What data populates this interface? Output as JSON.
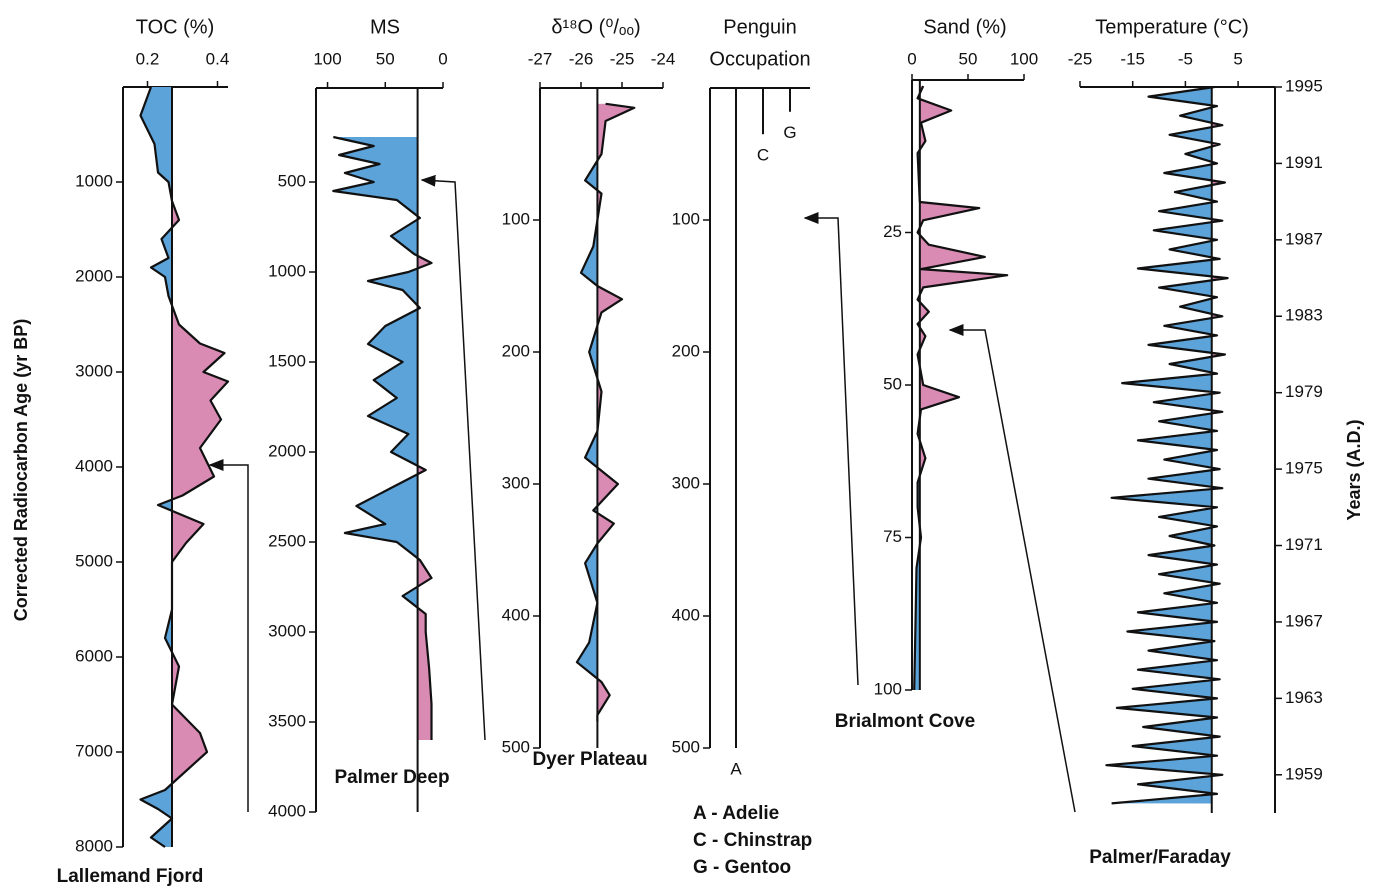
{
  "chart_data": [
    {
      "type": "area",
      "title": "TOC (%)",
      "label": "Lallemand Fjord",
      "y": [
        0,
        300,
        600,
        900,
        1000,
        1200,
        1400,
        1600,
        1800,
        1900,
        2000,
        2200,
        2500,
        2700,
        2800,
        3000,
        3100,
        3300,
        3500,
        3800,
        4100,
        4300,
        4400,
        4600,
        4800,
        5000,
        5500,
        5800,
        6100,
        6500,
        6800,
        7000,
        7200,
        7400,
        7500,
        7600,
        7700,
        7900,
        8000
      ],
      "values": [
        0.21,
        0.18,
        0.22,
        0.23,
        0.26,
        0.27,
        0.29,
        0.24,
        0.26,
        0.21,
        0.25,
        0.26,
        0.29,
        0.35,
        0.42,
        0.36,
        0.43,
        0.38,
        0.41,
        0.35,
        0.39,
        0.3,
        0.23,
        0.36,
        0.31,
        0.27,
        0.27,
        0.25,
        0.29,
        0.27,
        0.35,
        0.37,
        0.31,
        0.25,
        0.18,
        0.23,
        0.27,
        0.21,
        0.25
      ],
      "xlim": [
        0.13,
        0.43
      ],
      "xticks": [
        0.2,
        0.4
      ],
      "ylim": [
        0,
        8000
      ],
      "yticks": [
        1000,
        2000,
        3000,
        4000,
        5000,
        6000,
        7000,
        8000
      ],
      "baseline": 0.27,
      "fill_left": "#5ba3d9",
      "fill_right": "#d98bb4",
      "y_axis_title": "Corrected Radiocarbon Age (yr BP)"
    },
    {
      "type": "area",
      "title": "MS",
      "label": "Palmer Deep",
      "y": [
        250,
        300,
        350,
        400,
        450,
        500,
        550,
        600,
        700,
        800,
        900,
        950,
        1000,
        1050,
        1100,
        1200,
        1300,
        1400,
        1500,
        1600,
        1700,
        1800,
        1900,
        2000,
        2100,
        2200,
        2300,
        2400,
        2450,
        2500,
        2600,
        2700,
        2800,
        2900,
        3000,
        3200,
        3400,
        3600
      ],
      "values": [
        95,
        60,
        90,
        55,
        85,
        60,
        95,
        40,
        20,
        45,
        25,
        10,
        30,
        65,
        35,
        20,
        50,
        65,
        35,
        60,
        40,
        65,
        30,
        45,
        15,
        45,
        75,
        50,
        85,
        40,
        20,
        10,
        35,
        15,
        15,
        12,
        10,
        10
      ],
      "xlim": [
        110,
        0
      ],
      "xticks": [
        100,
        50,
        0
      ],
      "ylim": [
        0,
        4000
      ],
      "yticks": [
        500,
        1000,
        1500,
        2000,
        2500,
        3000,
        3500,
        4000
      ],
      "baseline": 22,
      "fill_left": "#5ba3d9",
      "fill_right": "#d98bb4"
    },
    {
      "type": "area",
      "title": "δ¹⁸O (⁰/ₒₒ)",
      "label": "Dyer Plateau",
      "y": [
        12,
        15,
        25,
        50,
        70,
        80,
        100,
        120,
        140,
        150,
        160,
        170,
        180,
        200,
        230,
        260,
        280,
        300,
        320,
        330,
        345,
        360,
        390,
        420,
        435,
        450,
        460,
        475,
        480
      ],
      "values": [
        -25.4,
        -24.7,
        -25.4,
        -25.5,
        -25.9,
        -25.5,
        -25.6,
        -25.7,
        -26.0,
        -25.6,
        -25.0,
        -25.5,
        -25.6,
        -25.8,
        -25.5,
        -25.6,
        -25.9,
        -25.1,
        -25.7,
        -25.2,
        -25.6,
        -25.9,
        -25.6,
        -25.8,
        -26.1,
        -25.5,
        -25.3,
        -25.6,
        -25.6
      ],
      "xlim": [
        -27,
        -24
      ],
      "xticks": [
        -27,
        -26,
        -25,
        -24
      ],
      "ylim": [
        0,
        500
      ],
      "yticks": [
        100,
        200,
        300,
        400,
        500
      ],
      "baseline": -25.6,
      "fill_left": "#5ba3d9",
      "fill_right": "#d98bb4"
    },
    {
      "type": "range",
      "title": [
        "Penguin",
        "Occupation"
      ],
      "categories": [
        "A",
        "C",
        "G"
      ],
      "start": [
        0,
        0,
        0
      ],
      "end": [
        500,
        35,
        18
      ],
      "legend": [
        "A - Adelie",
        "C - Chinstrap",
        "G - Gentoo"
      ],
      "ylim": [
        0,
        500
      ],
      "yticks": [
        100,
        200,
        300,
        400,
        500
      ]
    },
    {
      "type": "area",
      "title": "Sand (%)",
      "label": "Brialmont Cove",
      "y": [
        1,
        3,
        5,
        7,
        10,
        12,
        20,
        21,
        23,
        25,
        27,
        29,
        31,
        32,
        34,
        36,
        38,
        40,
        42,
        45,
        50,
        52,
        54,
        58,
        62,
        66,
        70,
        75,
        80,
        90,
        100
      ],
      "values": [
        10,
        5,
        35,
        8,
        12,
        5,
        7,
        60,
        10,
        5,
        15,
        65,
        8,
        85,
        10,
        5,
        15,
        5,
        12,
        5,
        10,
        42,
        8,
        5,
        12,
        5,
        5,
        8,
        4,
        3,
        2
      ],
      "xlim": [
        0,
        100
      ],
      "xticks": [
        0,
        50,
        100
      ],
      "ylim": [
        0,
        100
      ],
      "yticks": [
        25,
        50,
        75,
        100
      ],
      "baseline": 7,
      "fill_left": "#5ba3d9",
      "fill_right": "#d98bb4"
    },
    {
      "type": "area",
      "title": "Temperature (°C)",
      "label": "Palmer/Faraday",
      "y": [
        1995,
        1994.5,
        1994,
        1993.5,
        1993,
        1992.5,
        1992,
        1991.5,
        1991,
        1990.5,
        1990,
        1989.5,
        1989,
        1988.5,
        1988,
        1987.5,
        1987,
        1986.5,
        1986,
        1985.5,
        1985,
        1984.5,
        1984,
        1983.5,
        1983,
        1982.5,
        1982,
        1981.5,
        1981,
        1980.5,
        1980,
        1979.5,
        1979,
        1978.5,
        1978,
        1977.5,
        1977,
        1976.5,
        1976,
        1975.5,
        1975,
        1974.5,
        1974,
        1973.5,
        1973,
        1972.5,
        1972,
        1971.5,
        1971,
        1970.5,
        1970,
        1969.5,
        1969,
        1968.5,
        1968,
        1967.5,
        1967,
        1966.5,
        1966,
        1965.5,
        1965,
        1964.5,
        1964,
        1963.5,
        1963,
        1962.5,
        1962,
        1961.5,
        1961,
        1960.5,
        1960,
        1959.5,
        1959,
        1958.5,
        1958,
        1957.5
      ],
      "values": [
        0.5,
        -12,
        1,
        -6,
        2,
        -8,
        1.5,
        -5,
        1,
        -9,
        2.5,
        -7,
        1,
        -10,
        2,
        -11,
        1,
        -8,
        1.5,
        -14,
        3,
        -10,
        1,
        -6,
        2,
        -9,
        1,
        -12,
        2.5,
        -8,
        1,
        -17,
        1.5,
        -11,
        2,
        -10,
        1,
        -14,
        1,
        -9,
        1.5,
        -12,
        2,
        -19,
        1,
        -10,
        1,
        -8,
        0.5,
        -12,
        1,
        -10,
        1.5,
        -9,
        1,
        -14,
        1,
        -16,
        0.5,
        -12,
        1,
        -14,
        1.5,
        -15,
        1,
        -18,
        1,
        -13,
        1.5,
        -15,
        1,
        -20,
        2,
        -14,
        1,
        -19
      ],
      "xlim": [
        -25,
        12
      ],
      "xticks": [
        -25,
        -15,
        -5,
        5
      ],
      "ylim": [
        1995,
        1957
      ],
      "yticks": [
        1995,
        1991,
        1987,
        1983,
        1979,
        1975,
        1971,
        1967,
        1963,
        1959
      ],
      "baseline": 0,
      "fill_left": "#5ba3d9",
      "fill_right": "#d98bb4",
      "y_axis_title": "Years (A.D.)",
      "y_axis_side": "right"
    }
  ]
}
